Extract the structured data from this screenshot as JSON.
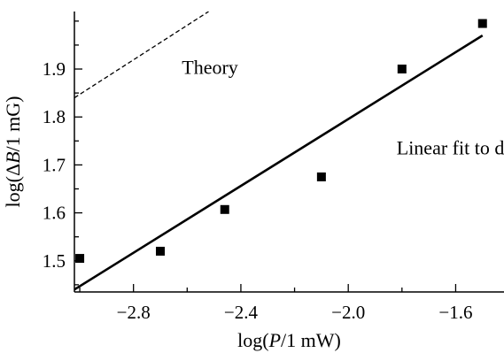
{
  "chart_data": {
    "type": "scatter",
    "xlabel": "log(P/1 mW)",
    "ylabel": "log(ΔB/1 mG)",
    "xlim": [
      -3.02,
      -1.42
    ],
    "ylim": [
      1.435,
      2.02
    ],
    "x_ticks": [
      -2.8,
      -2.4,
      -2.0,
      -1.6
    ],
    "x_tick_labels": [
      "−2.8",
      "−2.4",
      "−2.0",
      "−1.6"
    ],
    "y_ticks": [
      1.5,
      1.6,
      1.7,
      1.8,
      1.9
    ],
    "y_tick_labels": [
      "1.5",
      "1.6",
      "1.7",
      "1.8",
      "1.9"
    ],
    "grid": false,
    "series": [
      {
        "style": "markers-square",
        "x": [
          -3.0,
          -2.7,
          -2.46,
          -2.1,
          -1.8,
          -1.5
        ],
        "y": [
          1.505,
          1.52,
          1.607,
          1.675,
          1.9,
          1.995
        ]
      },
      {
        "style": "solid-line",
        "x": [
          -3.02,
          -1.5
        ],
        "y": [
          1.44,
          1.97
        ]
      },
      {
        "style": "dashed-line",
        "x": [
          -3.02,
          -2.52
        ],
        "y": [
          1.84,
          2.02
        ]
      }
    ],
    "annotations": [
      {
        "text": "Theory",
        "x": -2.62,
        "y": 1.89
      },
      {
        "text": "Linear fit to data",
        "x": -1.82,
        "y": 1.722
      }
    ]
  }
}
